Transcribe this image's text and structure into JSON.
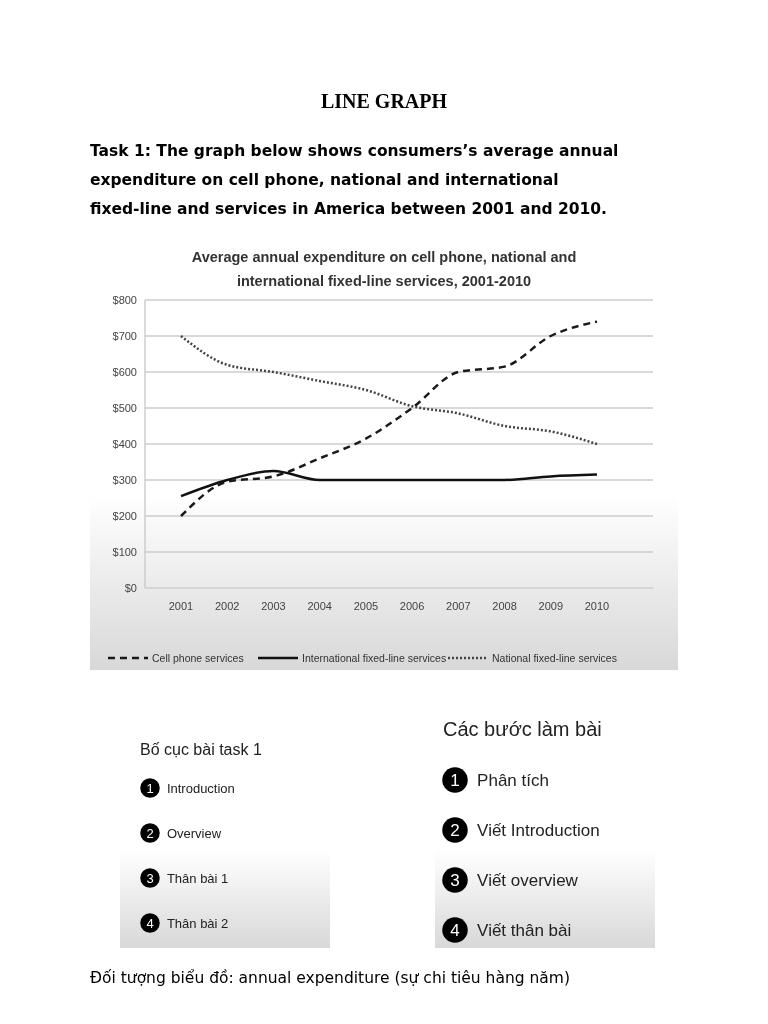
{
  "chart_data": {
    "type": "line",
    "title": "Average annual expenditure on cell phone, national and international fixed-line services, 2001-2010",
    "categories": [
      "2001",
      "2002",
      "2003",
      "2004",
      "2005",
      "2006",
      "2007",
      "2008",
      "2009",
      "2010"
    ],
    "series": [
      {
        "name": "Cell phone services",
        "color": "#1a1a1a",
        "line_style": "dashed",
        "values": [
          200,
          295,
          310,
          360,
          415,
          500,
          600,
          615,
          700,
          740
        ]
      },
      {
        "name": "International fixed-line services",
        "color": "#111111",
        "line_style": "solid",
        "values": [
          255,
          300,
          325,
          300,
          300,
          300,
          300,
          300,
          310,
          315
        ]
      },
      {
        "name": "National fixed-line services",
        "color": "#444444",
        "line_style": "dotted",
        "values": [
          700,
          620,
          600,
          575,
          550,
          505,
          485,
          450,
          435,
          400
        ]
      }
    ],
    "ylim": [
      0,
      800
    ],
    "yticks": [
      {
        "value": 0,
        "label": "$0"
      },
      {
        "value": 100,
        "label": "$100"
      },
      {
        "value": 200,
        "label": "$200"
      },
      {
        "value": 300,
        "label": "$300"
      },
      {
        "value": 400,
        "label": "$400"
      },
      {
        "value": 500,
        "label": "$500"
      },
      {
        "value": 600,
        "label": "$600"
      },
      {
        "value": 700,
        "label": "$700"
      },
      {
        "value": 800,
        "label": "$800"
      }
    ],
    "grid": "y",
    "legend": "bottom",
    "annotations": [
      "LINE GRAPH",
      "Task 1: The graph below shows consumers’s average annual expenditure on cell phone, national and international fixed-line and services in America between 2001 and 2010.",
      "Bố cục bài task 1",
      "1 Introduction",
      "2 Overview",
      "3 Thân bài 1",
      "4 Thân bài 2",
      "Các bước làm bài",
      "1 Phân tích",
      "2 Viết Introduction",
      "3 Viết overview",
      "4 Viết thân bài",
      "Đối tượng biểu đồ: annual expenditure (sự chi tiêu hàng năm)"
    ]
  }
}
